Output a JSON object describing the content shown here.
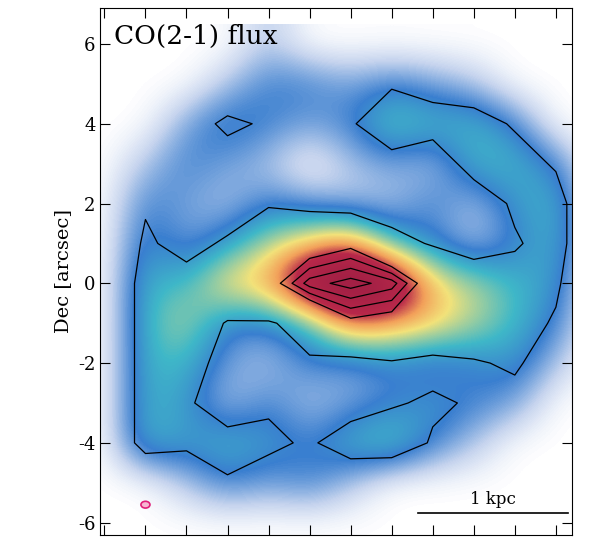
{
  "chart_data": {
    "type": "heatmap",
    "title": "CO(2-1) flux",
    "y_label": "Dec [arcsec]",
    "tick_labels": "y",
    "xlim": [
      -6.1,
      5.4
    ],
    "ylim": [
      -6.3,
      6.9
    ],
    "xticks": [
      -6,
      -5,
      -4,
      -3,
      -2,
      -1,
      0,
      1,
      2,
      3,
      4,
      5
    ],
    "yticks": [
      -6,
      -4,
      -2,
      0,
      2,
      4,
      6
    ],
    "x": [
      -6,
      -5,
      -4,
      -3,
      -2,
      -1,
      0,
      1,
      2,
      3,
      4,
      5,
      6
    ],
    "y": [
      6,
      5,
      4,
      3,
      2,
      1,
      0,
      -1,
      -2,
      -3,
      -4,
      -5,
      -6
    ],
    "cells": [
      [
        0,
        0,
        0,
        0,
        0.1,
        0,
        0,
        0,
        0,
        0,
        0,
        0,
        0
      ],
      [
        0,
        0,
        0,
        0.1,
        0.2,
        0.2,
        0.15,
        0.2,
        0.15,
        0.1,
        0,
        0,
        0
      ],
      [
        0,
        0,
        0.15,
        0.25,
        0.2,
        0.15,
        0.2,
        0.35,
        0.3,
        0.3,
        0.2,
        0,
        0
      ],
      [
        0,
        0.1,
        0.2,
        0.15,
        0.1,
        0,
        0.1,
        0.15,
        0.1,
        0.3,
        0.3,
        0.2,
        0
      ],
      [
        0,
        0.2,
        0.15,
        0.1,
        0.2,
        0.15,
        0.1,
        0.1,
        0.2,
        0.1,
        0.25,
        0.3,
        0
      ],
      [
        0,
        0.25,
        0.15,
        0.25,
        0.4,
        0.5,
        0.6,
        0.3,
        0.2,
        0.1,
        0.2,
        0.3,
        0
      ],
      [
        0,
        0.3,
        0.3,
        0.5,
        0.55,
        0.9,
        1.0,
        0.9,
        0.5,
        0.4,
        0.3,
        0.25,
        0
      ],
      [
        0,
        0.3,
        0.4,
        0.2,
        0.2,
        0.3,
        0.6,
        0.55,
        0.5,
        0.4,
        0.3,
        0.2,
        0
      ],
      [
        0,
        0.3,
        0.3,
        0.15,
        0.1,
        0.2,
        0.15,
        0.2,
        0.15,
        0.2,
        0.25,
        0.1,
        0
      ],
      [
        0,
        0.3,
        0.25,
        0.1,
        0.2,
        0.1,
        0.15,
        0.2,
        0.25,
        0.2,
        0.15,
        0,
        0
      ],
      [
        0,
        0.3,
        0.25,
        0.3,
        0.25,
        0.2,
        0.3,
        0.35,
        0.2,
        0.1,
        0,
        0,
        0
      ],
      [
        0,
        0,
        0.1,
        0.2,
        0.15,
        0.2,
        0.1,
        0,
        0,
        0,
        0,
        0,
        0
      ],
      [
        0,
        0,
        0,
        0,
        0,
        0,
        0,
        0,
        0,
        0,
        0,
        0,
        0
      ]
    ],
    "contour_levels": [
      0.22,
      0.65,
      0.75,
      0.85,
      0.95
    ],
    "scalebar": {
      "label": "1 kpc",
      "length": 3.65
    }
  }
}
